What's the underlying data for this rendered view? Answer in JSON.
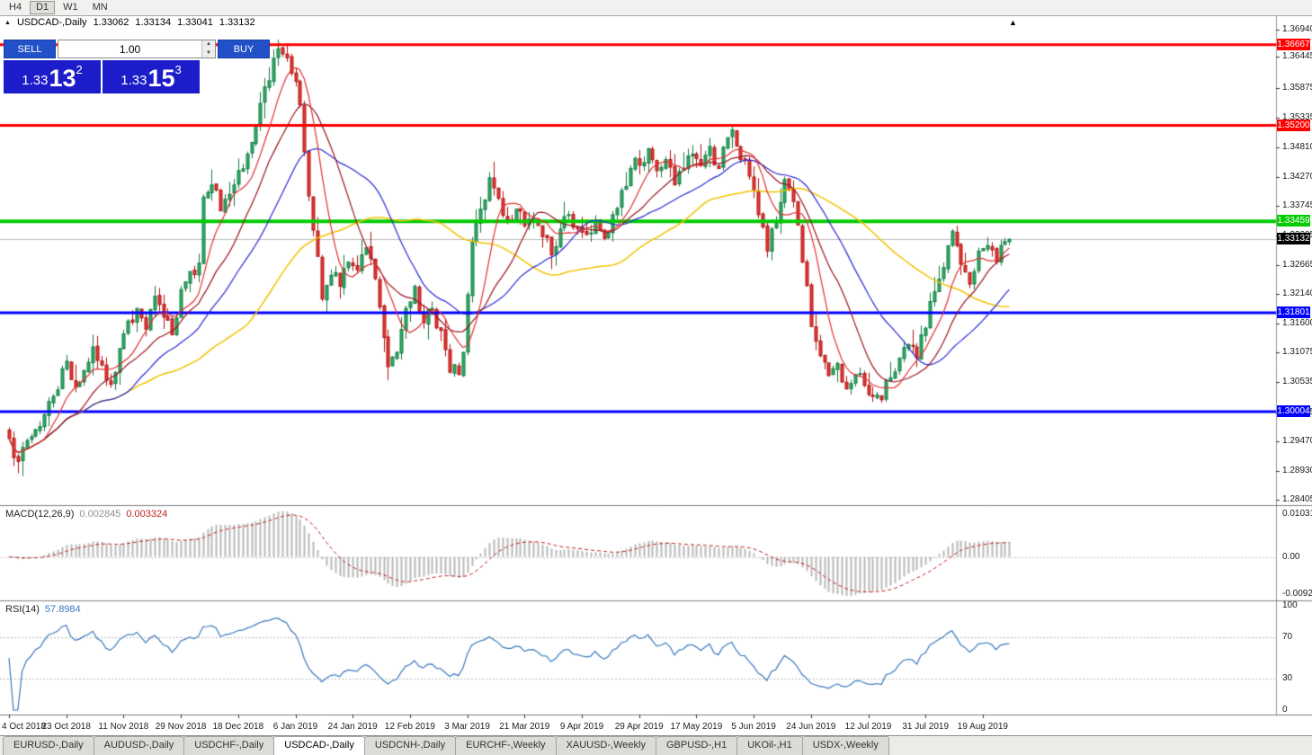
{
  "toolbar": {
    "timeframes": [
      {
        "label": "H4",
        "active": false
      },
      {
        "label": "D1",
        "active": true
      },
      {
        "label": "W1",
        "active": false
      },
      {
        "label": "MN",
        "active": false
      }
    ]
  },
  "chart": {
    "symbol_title": "USDCAD-,Daily",
    "ohlc": {
      "open": "1.33062",
      "high": "1.33134",
      "low": "1.33041",
      "close": "1.33132"
    },
    "collapse_marker": "▲",
    "shift_marker": "▲"
  },
  "trade_panel": {
    "sell_label": "SELL",
    "buy_label": "BUY",
    "volume": "1.00",
    "sell_price": {
      "prefix": "1.33",
      "big": "13",
      "sup": "2"
    },
    "buy_price": {
      "prefix": "1.33",
      "big": "15",
      "sup": "3"
    }
  },
  "chart_data": {
    "type": "candlestick",
    "symbol": "USDCAD",
    "timeframe": "Daily",
    "price_axis": {
      "max": 1.3694,
      "min": 1.28405,
      "ticks": [
        "1.36940",
        "1.36445",
        "1.35875",
        "1.35335",
        "1.34810",
        "1.34270",
        "1.33745",
        "1.33205",
        "1.32665",
        "1.32140",
        "1.31600",
        "1.31075",
        "1.30535",
        "1.29995",
        "1.29470",
        "1.28930",
        "1.28405"
      ]
    },
    "current_price": {
      "value": 1.33132,
      "label": "1.33132",
      "line_color": "#bdbdbd",
      "box_color": "#000000"
    },
    "hlines": [
      {
        "price": 1.36667,
        "label": "1.36667",
        "color": "#ff0000",
        "width": 3
      },
      {
        "price": 1.352,
        "label": "1.35200",
        "color": "#ff0000",
        "width": 3
      },
      {
        "price": 1.33459,
        "label": "1.33459",
        "color": "#00cc00",
        "width": 4
      },
      {
        "price": 1.31801,
        "label": "1.31801",
        "color": "#0000ff",
        "width": 3
      },
      {
        "price": 1.30004,
        "label": "1.30004",
        "color": "#0000ff",
        "width": 3
      }
    ],
    "date_labels": [
      "4 Oct 2018",
      "23 Oct 2018",
      "11 Nov 2018",
      "29 Nov 2018",
      "18 Dec 2018",
      "6 Jan 2019",
      "24 Jan 2019",
      "12 Feb 2019",
      "3 Mar 2019",
      "21 Mar 2019",
      "9 Apr 2019",
      "29 Apr 2019",
      "17 May 2019",
      "5 Jun 2019",
      "24 Jun 2019",
      "12 Jul 2019",
      "31 Jul 2019",
      "19 Aug 2019"
    ],
    "label_step": 13,
    "candle_colors": {
      "up": "#2fae66",
      "up_border": "#157a43",
      "down": "#e53935",
      "down_border": "#b01515"
    },
    "moving_averages": [
      {
        "period": 55,
        "color": "#f3c300",
        "width": 1.5
      },
      {
        "period": 28,
        "color": "#2b2bd5",
        "width": 1.2
      },
      {
        "period": 16,
        "color": "#9c1420",
        "width": 1.2
      },
      {
        "period": 8,
        "color": "#e03131",
        "width": 1.2
      }
    ],
    "candles": {
      "count": 228,
      "seed": 7,
      "noise": 0.0032,
      "wick": 0.0034,
      "last_close": 1.33132,
      "close_keypoints": [
        [
          0,
          1.2952
        ],
        [
          2,
          1.291
        ],
        [
          4,
          1.2948
        ],
        [
          6,
          1.2968
        ],
        [
          8,
          1.2995
        ],
        [
          10,
          1.3028
        ],
        [
          13,
          1.3092
        ],
        [
          15,
          1.3045
        ],
        [
          17,
          1.3075
        ],
        [
          19,
          1.3118
        ],
        [
          21,
          1.3085
        ],
        [
          23,
          1.305
        ],
        [
          25,
          1.3115
        ],
        [
          27,
          1.3165
        ],
        [
          29,
          1.3188
        ],
        [
          31,
          1.315
        ],
        [
          33,
          1.321
        ],
        [
          35,
          1.3172
        ],
        [
          37,
          1.314
        ],
        [
          39,
          1.3222
        ],
        [
          41,
          1.3255
        ],
        [
          43,
          1.327
        ],
        [
          44,
          1.339
        ],
        [
          46,
          1.3412
        ],
        [
          48,
          1.3365
        ],
        [
          50,
          1.3395
        ],
        [
          52,
          1.3438
        ],
        [
          54,
          1.3468
        ],
        [
          56,
          1.3522
        ],
        [
          58,
          1.359
        ],
        [
          60,
          1.3642
        ],
        [
          62,
          1.365
        ],
        [
          64,
          1.3615
        ],
        [
          66,
          1.3558
        ],
        [
          67,
          1.3472
        ],
        [
          68,
          1.3392
        ],
        [
          69,
          1.333
        ],
        [
          71,
          1.3205
        ],
        [
          73,
          1.3248
        ],
        [
          75,
          1.3228
        ],
        [
          77,
          1.3272
        ],
        [
          79,
          1.3258
        ],
        [
          81,
          1.3298
        ],
        [
          83,
          1.3242
        ],
        [
          85,
          1.3135
        ],
        [
          86,
          1.3082
        ],
        [
          88,
          1.3108
        ],
        [
          90,
          1.3188
        ],
        [
          92,
          1.3228
        ],
        [
          94,
          1.3162
        ],
        [
          96,
          1.3188
        ],
        [
          98,
          1.3148
        ],
        [
          100,
          1.3072
        ],
        [
          102,
          1.3068
        ],
        [
          103,
          1.3108
        ],
        [
          105,
          1.3308
        ],
        [
          107,
          1.3368
        ],
        [
          109,
          1.3425
        ],
        [
          111,
          1.3388
        ],
        [
          113,
          1.3348
        ],
        [
          115,
          1.3368
        ],
        [
          117,
          1.3338
        ],
        [
          119,
          1.3352
        ],
        [
          121,
          1.3318
        ],
        [
          123,
          1.3285
        ],
        [
          125,
          1.3332
        ],
        [
          127,
          1.3358
        ],
        [
          129,
          1.3332
        ],
        [
          131,
          1.3322
        ],
        [
          133,
          1.3348
        ],
        [
          135,
          1.3315
        ],
        [
          137,
          1.3358
        ],
        [
          139,
          1.3402
        ],
        [
          141,
          1.3442
        ],
        [
          143,
          1.3448
        ],
        [
          145,
          1.3478
        ],
        [
          147,
          1.3438
        ],
        [
          149,
          1.3458
        ],
        [
          151,
          1.3412
        ],
        [
          153,
          1.3442
        ],
        [
          155,
          1.3468
        ],
        [
          157,
          1.3448
        ],
        [
          159,
          1.3482
        ],
        [
          161,
          1.3442
        ],
        [
          163,
          1.3498
        ],
        [
          164,
          1.3512
        ],
        [
          166,
          1.3458
        ],
        [
          168,
          1.3428
        ],
        [
          169,
          1.3402
        ],
        [
          170,
          1.3358
        ],
        [
          172,
          1.3292
        ],
        [
          174,
          1.3342
        ],
        [
          176,
          1.3422
        ],
        [
          178,
          1.3382
        ],
        [
          180,
          1.3272
        ],
        [
          182,
          1.3155
        ],
        [
          184,
          1.3102
        ],
        [
          186,
          1.3066
        ],
        [
          188,
          1.3088
        ],
        [
          190,
          1.3042
        ],
        [
          192,
          1.3068
        ],
        [
          194,
          1.3048
        ],
        [
          196,
          1.3028
        ],
        [
          198,
          1.3022
        ],
        [
          200,
          1.3062
        ],
        [
          202,
          1.3098
        ],
        [
          204,
          1.3122
        ],
        [
          206,
          1.3098
        ],
        [
          208,
          1.3152
        ],
        [
          210,
          1.3218
        ],
        [
          212,
          1.3262
        ],
        [
          214,
          1.3328
        ],
        [
          216,
          1.3268
        ],
        [
          218,
          1.3232
        ],
        [
          220,
          1.3292
        ],
        [
          222,
          1.3302
        ],
        [
          224,
          1.3272
        ],
        [
          225,
          1.3302
        ],
        [
          227,
          1.33132
        ]
      ]
    },
    "macd": {
      "title": "MACD(12,26,9)",
      "value_main": "0.002845",
      "value_signal": "0.003324",
      "fast": 12,
      "slow": 26,
      "signal": 9,
      "hist_color": "#b9b9b9",
      "signal_color": "#c22222",
      "axis": {
        "max": 0.010311,
        "min": -0.009203,
        "labels": {
          "top": "0.010311",
          "mid": "0.00",
          "bottom": "-0.009203"
        }
      }
    },
    "rsi": {
      "title": "RSI(14)",
      "value": "57.8984",
      "period": 14,
      "color": "#3a7abf",
      "levels": [
        70,
        30
      ],
      "axis_labels": [
        [
          "100",
          100
        ],
        [
          "70",
          70
        ],
        [
          "30",
          30
        ],
        [
          "0",
          0
        ]
      ]
    }
  },
  "tabs": [
    {
      "label": "EURUSD-,Daily",
      "active": false
    },
    {
      "label": "AUDUSD-,Daily",
      "active": false
    },
    {
      "label": "USDCHF-,Daily",
      "active": false
    },
    {
      "label": "USDCAD-,Daily",
      "active": true
    },
    {
      "label": "USDCNH-,Daily",
      "active": false
    },
    {
      "label": "EURCHF-,Weekly",
      "active": false
    },
    {
      "label": "XAUUSD-,Weekly",
      "active": false
    },
    {
      "label": "GBPUSD-,H1",
      "active": false
    },
    {
      "label": "UKOil-,H1",
      "active": false
    },
    {
      "label": "USDX-,Weekly",
      "active": false
    }
  ]
}
